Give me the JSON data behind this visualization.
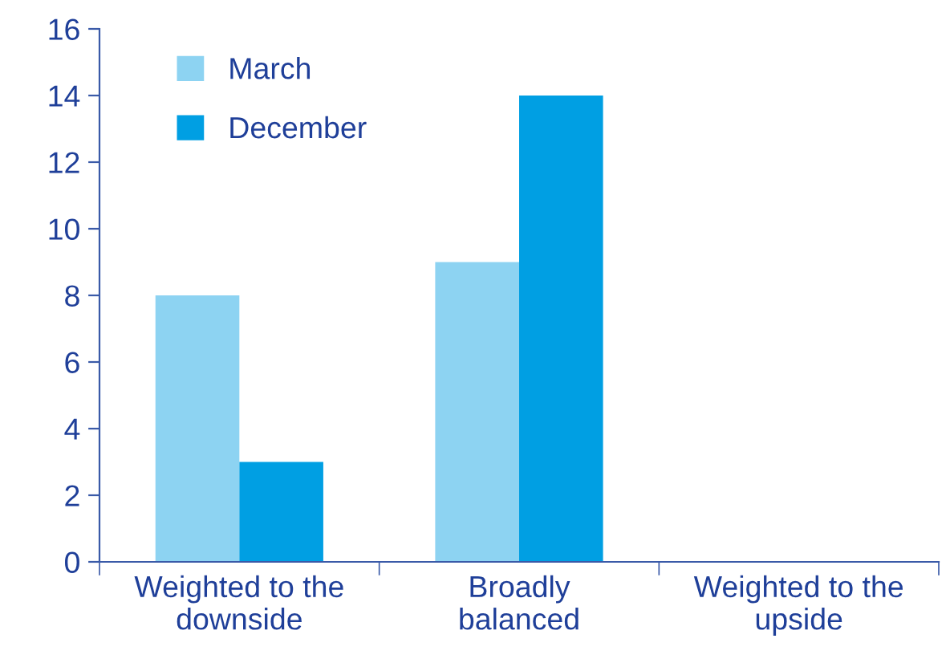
{
  "chart_data": {
    "type": "bar",
    "categories": [
      "Weighted to the\ndownside",
      "Broadly\nbalanced",
      "Weighted to the\nupside"
    ],
    "series": [
      {
        "name": "March",
        "color": "#8dd3f2",
        "values": [
          8,
          9,
          0
        ]
      },
      {
        "name": "December",
        "color": "#009fe3",
        "values": [
          3,
          14,
          0
        ]
      }
    ],
    "ylim": [
      0,
      16
    ],
    "yticks": [
      0,
      2,
      4,
      6,
      8,
      10,
      12,
      14,
      16
    ],
    "grid": false,
    "legend": "top left"
  }
}
